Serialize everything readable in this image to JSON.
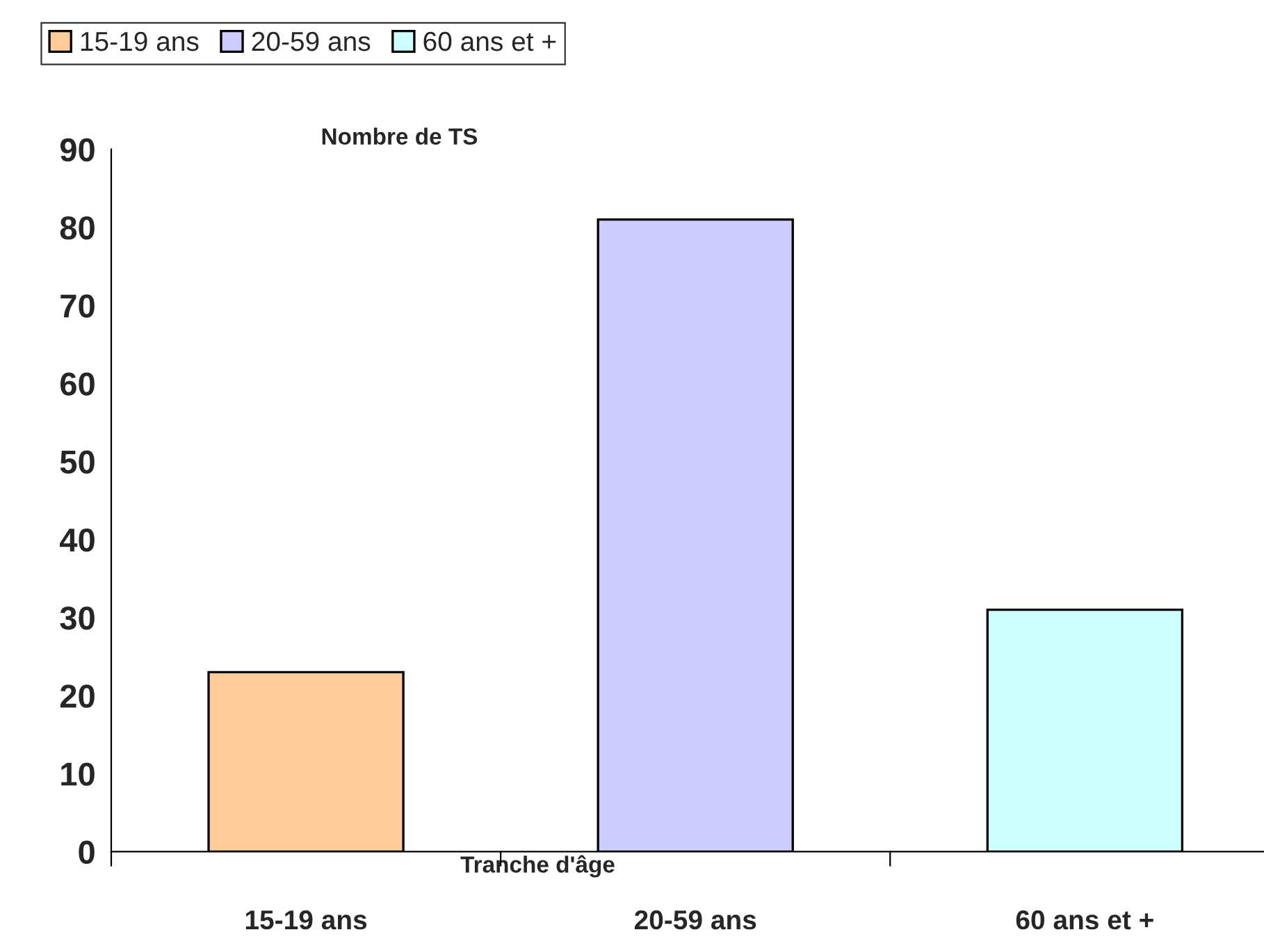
{
  "chart_data": {
    "type": "bar",
    "categories": [
      "15-19 ans",
      "20-59 ans",
      "60 ans et +"
    ],
    "series": [
      {
        "name": "15-19 ans",
        "color": "#ffcc99",
        "values": [
          23,
          null,
          null
        ]
      },
      {
        "name": "20-59 ans",
        "color": "#ccccff",
        "values": [
          null,
          81,
          null
        ]
      },
      {
        "name": "60 ans et +",
        "color": "#ccffff",
        "values": [
          null,
          null,
          31
        ]
      }
    ],
    "xlabel": "Tranche d'âge",
    "ylabel": "Nombre de TS",
    "ylim": [
      0,
      90
    ],
    "yticks": [
      0,
      10,
      20,
      30,
      40,
      50,
      60,
      70,
      80,
      90
    ],
    "legend": "top left",
    "grid": false
  }
}
